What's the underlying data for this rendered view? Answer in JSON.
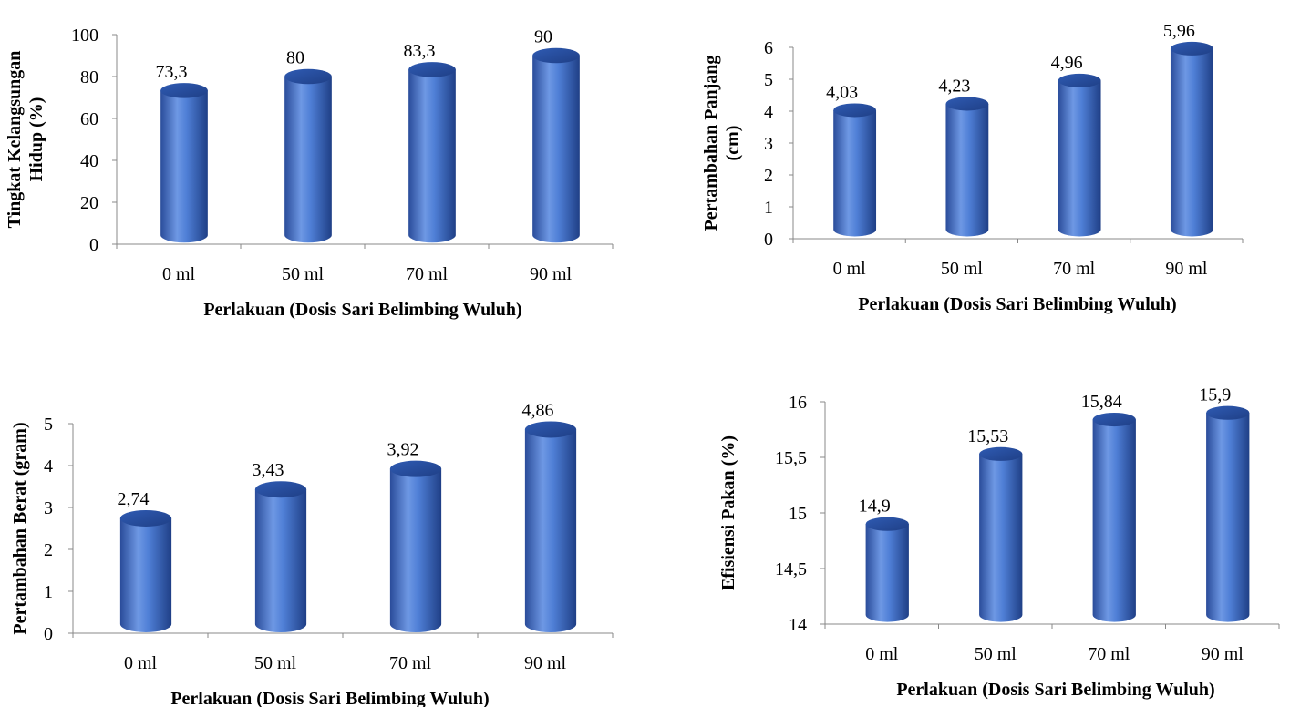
{
  "chart_data": [
    {
      "type": "bar",
      "style": "3d-cylinder",
      "categories": [
        "0 ml",
        "50 ml",
        "70 ml",
        "90 ml"
      ],
      "values": [
        73.3,
        80,
        83.3,
        90
      ],
      "data_labels": [
        "73,3",
        "80",
        "83,3",
        "90"
      ],
      "xlabel": "Perlakuan (Dosis Sari Belimbing Wuluh)",
      "ylabel_lines": [
        "Tingkat Kelangsungan",
        "Hidup (%)"
      ],
      "ylim": [
        0,
        100
      ],
      "yticks": [
        0,
        20,
        40,
        60,
        80,
        100
      ],
      "ytick_labels": [
        "0",
        "20",
        "40",
        "60",
        "80",
        "100"
      ],
      "grid": false,
      "legend": "none"
    },
    {
      "type": "bar",
      "style": "3d-cylinder",
      "categories": [
        "0 ml",
        "50 ml",
        "70 ml",
        "90 ml"
      ],
      "values": [
        4.03,
        4.23,
        4.96,
        5.96
      ],
      "data_labels": [
        "4,03",
        "4,23",
        "4,96",
        "5,96"
      ],
      "xlabel": "Perlakuan (Dosis Sari Belimbing Wuluh)",
      "ylabel_lines": [
        "Pertambahan Panjang",
        "(cm)"
      ],
      "ylim": [
        0,
        6
      ],
      "yticks": [
        0,
        1,
        2,
        3,
        4,
        5,
        6
      ],
      "ytick_labels": [
        "0",
        "1",
        "2",
        "3",
        "4",
        "5",
        "6"
      ],
      "grid": false,
      "legend": "none"
    },
    {
      "type": "bar",
      "style": "3d-cylinder",
      "categories": [
        "0 ml",
        "50 ml",
        "70 ml",
        "90 ml"
      ],
      "values": [
        2.74,
        3.43,
        3.92,
        4.86
      ],
      "data_labels": [
        "2,74",
        "3,43",
        "3,92",
        "4,86"
      ],
      "xlabel": "Perlakuan (Dosis Sari Belimbing Wuluh)",
      "ylabel_lines": [
        "Pertambahan Berat (gram)"
      ],
      "ylim": [
        0,
        5
      ],
      "yticks": [
        0,
        1,
        2,
        3,
        4,
        5
      ],
      "ytick_labels": [
        "0",
        "1",
        "2",
        "3",
        "4",
        "5"
      ],
      "grid": false,
      "legend": "none"
    },
    {
      "type": "bar",
      "style": "3d-cylinder",
      "categories": [
        "0 ml",
        "50 ml",
        "70 ml",
        "90 ml"
      ],
      "values": [
        14.9,
        15.53,
        15.84,
        15.9
      ],
      "data_labels": [
        "14,9",
        "15,53",
        "15,84",
        "15,9"
      ],
      "xlabel": "Perlakuan (Dosis Sari Belimbing Wuluh)",
      "ylabel_lines": [
        "Efisiensi Pakan (%)"
      ],
      "ylim": [
        14,
        16
      ],
      "yticks": [
        14,
        14.5,
        15,
        15.5,
        16
      ],
      "ytick_labels": [
        "14",
        "14,5",
        "15",
        "15,5",
        "16"
      ],
      "grid": false,
      "legend": "none"
    }
  ],
  "colors": {
    "bar_main": "#3f6ec9",
    "bar_light": "#6e98e4",
    "bar_dark": "#2a4c9a",
    "bar_top": "#2f5bb3",
    "axis": "#888888"
  }
}
